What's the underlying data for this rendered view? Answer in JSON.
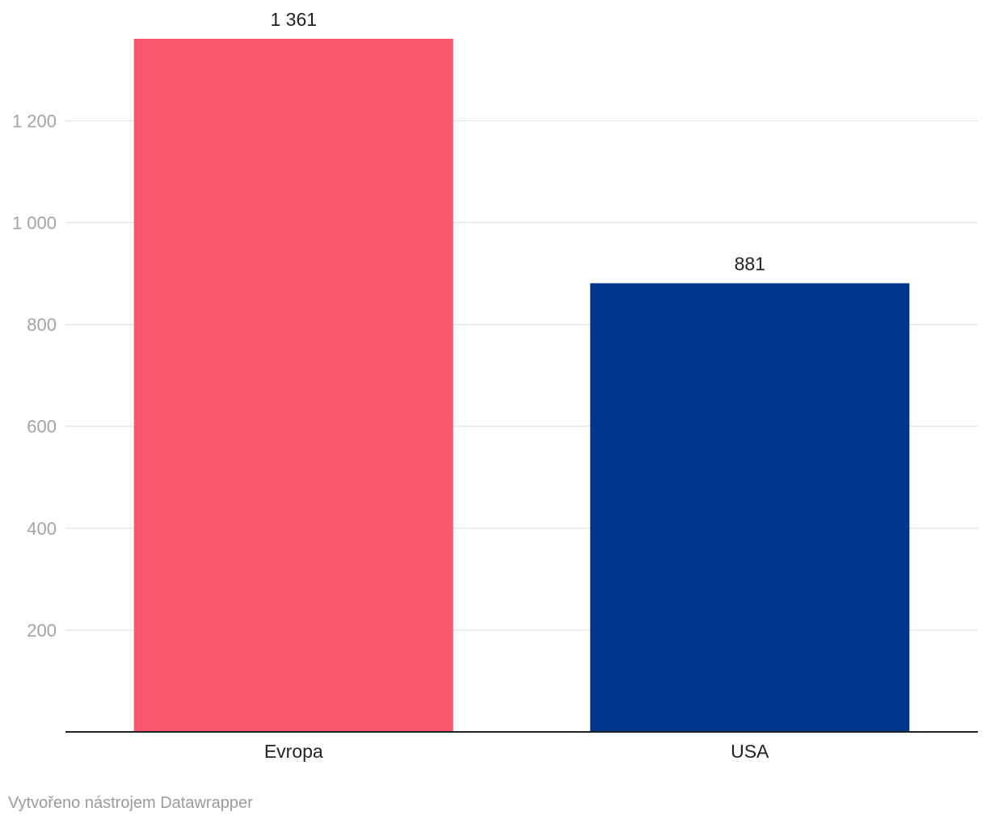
{
  "chart_data": {
    "type": "bar",
    "categories": [
      "Evropa",
      "USA"
    ],
    "values": [
      1361,
      881
    ],
    "value_labels": [
      "1 361",
      "881"
    ],
    "colors": [
      "#f7576e",
      "#02358d"
    ],
    "yticks": [
      200,
      400,
      600,
      800,
      1000,
      1200
    ],
    "ytick_labels": [
      "200",
      "400",
      "600",
      "800",
      "1 000",
      "1 200"
    ],
    "ylim": [
      0,
      1361
    ],
    "grid": true,
    "title": "",
    "xlabel": "",
    "ylabel": ""
  },
  "footer": {
    "credit": "Vytvořeno nástrojem Datawrapper"
  }
}
